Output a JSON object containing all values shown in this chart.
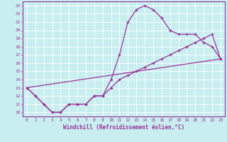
{
  "xlabel": "Windchill (Refroidissement éolien,°C)",
  "bg_color": "#c8eef0",
  "line_color": "#993399",
  "xlim": [
    -0.5,
    23.5
  ],
  "ylim": [
    9.5,
    23.5
  ],
  "xticks": [
    0,
    1,
    2,
    3,
    4,
    5,
    6,
    7,
    8,
    9,
    10,
    11,
    12,
    13,
    14,
    15,
    16,
    17,
    18,
    19,
    20,
    21,
    22,
    23
  ],
  "yticks": [
    10,
    11,
    12,
    13,
    14,
    15,
    16,
    17,
    18,
    19,
    20,
    21,
    22,
    23
  ],
  "line1_x": [
    0,
    1,
    2,
    3,
    4,
    5,
    6,
    7,
    8,
    9,
    10,
    11,
    12,
    13,
    14,
    15,
    16,
    17,
    18,
    19,
    20,
    21,
    22,
    23
  ],
  "line1_y": [
    13,
    12,
    11,
    10,
    10,
    11,
    11,
    11,
    12,
    12,
    14,
    17,
    21,
    22.5,
    23,
    22.5,
    21.5,
    20,
    19.5,
    19.5,
    19.5,
    18.5,
    18,
    16.5
  ],
  "line2_x": [
    0,
    1,
    2,
    3,
    4,
    5,
    6,
    7,
    8,
    9,
    10,
    11,
    12,
    13,
    14,
    15,
    16,
    17,
    18,
    19,
    20,
    21,
    22,
    23
  ],
  "line2_y": [
    13,
    12,
    11,
    10,
    10,
    11,
    11,
    11,
    12,
    12,
    13,
    14,
    14.5,
    15,
    15.5,
    16,
    16.5,
    17,
    17.5,
    18,
    18.5,
    19,
    19.5,
    16.5
  ],
  "line3_x": [
    0,
    23
  ],
  "line3_y": [
    13,
    16.5
  ]
}
